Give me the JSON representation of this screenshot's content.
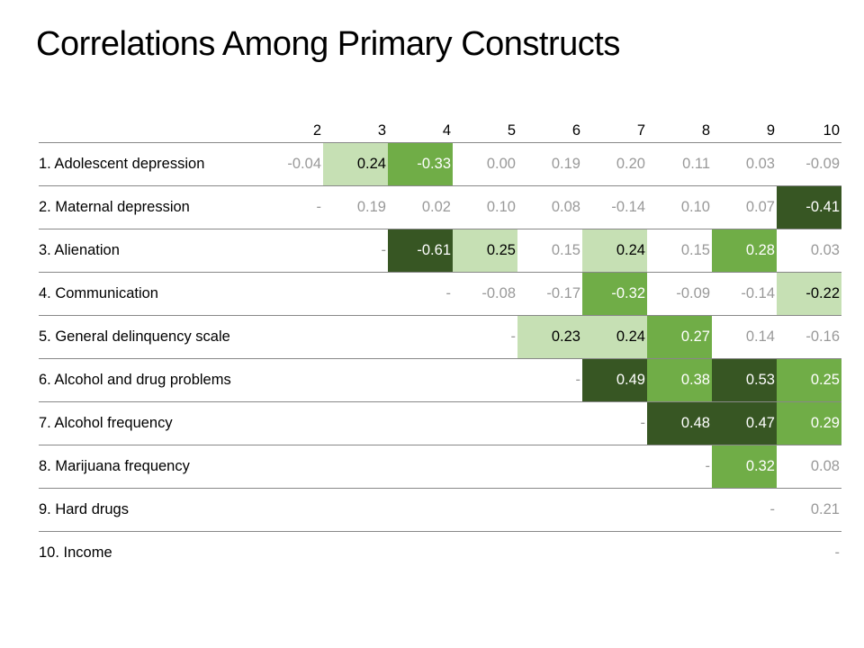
{
  "title": "Correlations Among Primary Constructs",
  "colors": {
    "light": "#c6e0b4",
    "mid": "#70ad47",
    "dark": "#375623",
    "muted_text": "#999999"
  },
  "columns": [
    "2",
    "3",
    "4",
    "5",
    "6",
    "7",
    "8",
    "9",
    "10"
  ],
  "rows": [
    {
      "label": "1. Adolescent depression",
      "cells": [
        {
          "v": "-0.04",
          "s": ""
        },
        {
          "v": "0.24",
          "s": "light"
        },
        {
          "v": "-0.33",
          "s": "mid"
        },
        {
          "v": "0.00",
          "s": ""
        },
        {
          "v": "0.19",
          "s": ""
        },
        {
          "v": "0.20",
          "s": ""
        },
        {
          "v": "0.11",
          "s": ""
        },
        {
          "v": "0.03",
          "s": ""
        },
        {
          "v": "-0.09",
          "s": ""
        }
      ]
    },
    {
      "label": "2. Maternal depression",
      "cells": [
        {
          "v": "-",
          "s": ""
        },
        {
          "v": "0.19",
          "s": ""
        },
        {
          "v": "0.02",
          "s": ""
        },
        {
          "v": "0.10",
          "s": ""
        },
        {
          "v": "0.08",
          "s": ""
        },
        {
          "v": "-0.14",
          "s": ""
        },
        {
          "v": "0.10",
          "s": ""
        },
        {
          "v": "0.07",
          "s": ""
        },
        {
          "v": "-0.41",
          "s": "dark"
        }
      ]
    },
    {
      "label": "3. Alienation",
      "cells": [
        {
          "v": "",
          "s": ""
        },
        {
          "v": "-",
          "s": ""
        },
        {
          "v": "-0.61",
          "s": "dark"
        },
        {
          "v": "0.25",
          "s": "light"
        },
        {
          "v": "0.15",
          "s": ""
        },
        {
          "v": "0.24",
          "s": "light"
        },
        {
          "v": "0.15",
          "s": ""
        },
        {
          "v": "0.28",
          "s": "mid"
        },
        {
          "v": "0.03",
          "s": ""
        }
      ]
    },
    {
      "label": "4. Communication",
      "cells": [
        {
          "v": "",
          "s": ""
        },
        {
          "v": "",
          "s": ""
        },
        {
          "v": "-",
          "s": ""
        },
        {
          "v": "-0.08",
          "s": ""
        },
        {
          "v": "-0.17",
          "s": ""
        },
        {
          "v": "-0.32",
          "s": "mid"
        },
        {
          "v": "-0.09",
          "s": ""
        },
        {
          "v": "-0.14",
          "s": ""
        },
        {
          "v": "-0.22",
          "s": "light"
        }
      ]
    },
    {
      "label": "5. General delinquency scale",
      "cells": [
        {
          "v": "",
          "s": ""
        },
        {
          "v": "",
          "s": ""
        },
        {
          "v": "",
          "s": ""
        },
        {
          "v": "-",
          "s": ""
        },
        {
          "v": "0.23",
          "s": "light"
        },
        {
          "v": "0.24",
          "s": "light"
        },
        {
          "v": "0.27",
          "s": "mid"
        },
        {
          "v": "0.14",
          "s": ""
        },
        {
          "v": "-0.16",
          "s": ""
        }
      ]
    },
    {
      "label": "6. Alcohol and drug problems",
      "cells": [
        {
          "v": "",
          "s": ""
        },
        {
          "v": "",
          "s": ""
        },
        {
          "v": "",
          "s": ""
        },
        {
          "v": "",
          "s": ""
        },
        {
          "v": "-",
          "s": ""
        },
        {
          "v": "0.49",
          "s": "dark"
        },
        {
          "v": "0.38",
          "s": "mid"
        },
        {
          "v": "0.53",
          "s": "dark"
        },
        {
          "v": "0.25",
          "s": "mid"
        }
      ]
    },
    {
      "label": "7. Alcohol frequency",
      "cells": [
        {
          "v": "",
          "s": ""
        },
        {
          "v": "",
          "s": ""
        },
        {
          "v": "",
          "s": ""
        },
        {
          "v": "",
          "s": ""
        },
        {
          "v": "",
          "s": ""
        },
        {
          "v": "-",
          "s": ""
        },
        {
          "v": "0.48",
          "s": "dark"
        },
        {
          "v": "0.47",
          "s": "dark"
        },
        {
          "v": "0.29",
          "s": "mid"
        }
      ]
    },
    {
      "label": "8. Marijuana frequency",
      "cells": [
        {
          "v": "",
          "s": ""
        },
        {
          "v": "",
          "s": ""
        },
        {
          "v": "",
          "s": ""
        },
        {
          "v": "",
          "s": ""
        },
        {
          "v": "",
          "s": ""
        },
        {
          "v": "",
          "s": ""
        },
        {
          "v": "-",
          "s": ""
        },
        {
          "v": "0.32",
          "s": "mid"
        },
        {
          "v": "0.08",
          "s": ""
        }
      ]
    },
    {
      "label": "9. Hard drugs",
      "cells": [
        {
          "v": "",
          "s": ""
        },
        {
          "v": "",
          "s": ""
        },
        {
          "v": "",
          "s": ""
        },
        {
          "v": "",
          "s": ""
        },
        {
          "v": "",
          "s": ""
        },
        {
          "v": "",
          "s": ""
        },
        {
          "v": "",
          "s": ""
        },
        {
          "v": "-",
          "s": ""
        },
        {
          "v": "0.21",
          "s": ""
        }
      ]
    },
    {
      "label": "10. Income",
      "cells": [
        {
          "v": "",
          "s": ""
        },
        {
          "v": "",
          "s": ""
        },
        {
          "v": "",
          "s": ""
        },
        {
          "v": "",
          "s": ""
        },
        {
          "v": "",
          "s": ""
        },
        {
          "v": "",
          "s": ""
        },
        {
          "v": "",
          "s": ""
        },
        {
          "v": "",
          "s": ""
        },
        {
          "v": "-",
          "s": ""
        }
      ]
    }
  ]
}
